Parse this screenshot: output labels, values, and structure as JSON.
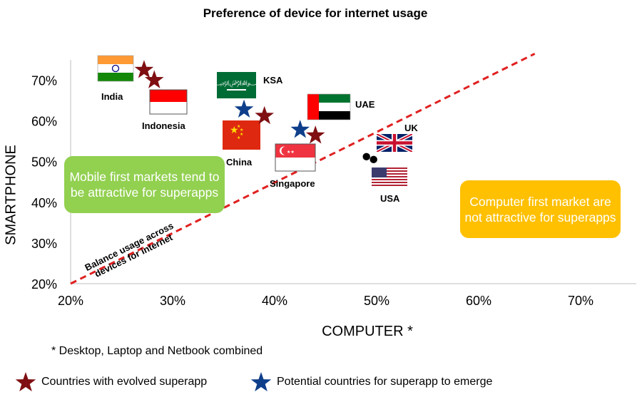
{
  "chart_data": {
    "type": "scatter",
    "title": "Preference of device for internet usage",
    "xlabel": "COMPUTER *",
    "ylabel": "SMARTPHONE",
    "xlim": [
      20,
      75
    ],
    "ylim": [
      20,
      75
    ],
    "x_ticks": [
      "20%",
      "30%",
      "40%",
      "50%",
      "60%",
      "70%"
    ],
    "y_ticks": [
      "20%",
      "30%",
      "40%",
      "50%",
      "60%",
      "70%"
    ],
    "x_tick_values": [
      20,
      30,
      40,
      50,
      60,
      70
    ],
    "y_tick_values": [
      20,
      30,
      40,
      50,
      60,
      70
    ],
    "grid": false,
    "series": [
      {
        "name": "Countries with evolved superapp",
        "marker": "star",
        "color": "#7f0f12",
        "points": [
          {
            "x": 27.2,
            "y": 72.5
          },
          {
            "x": 28.2,
            "y": 70.0
          },
          {
            "x": 39.0,
            "y": 61.2
          },
          {
            "x": 44.0,
            "y": 56.4
          }
        ]
      },
      {
        "name": "Potential countries for superapp to emerge",
        "marker": "star",
        "color": "#0f3f8a",
        "points": [
          {
            "x": 37.0,
            "y": 62.8
          },
          {
            "x": 42.5,
            "y": 57.8
          }
        ]
      },
      {
        "name": "",
        "marker": "circle",
        "color": "#000000",
        "points": [
          {
            "x": 49.0,
            "y": 51.2
          },
          {
            "x": 49.7,
            "y": 50.5
          }
        ]
      }
    ],
    "countries": [
      {
        "label": "India",
        "flag": "india-flag"
      },
      {
        "label": "Indonesia",
        "flag": "indonesia-flag"
      },
      {
        "label": "KSA",
        "flag": "ksa-flag"
      },
      {
        "label": "China",
        "flag": "china-flag"
      },
      {
        "label": "UAE",
        "flag": "uae-flag"
      },
      {
        "label": "Singapore",
        "flag": "singapore-flag"
      },
      {
        "label": "UK",
        "flag": "uk-flag"
      },
      {
        "label": "USA",
        "flag": "usa-flag"
      }
    ],
    "balance_line": {
      "label": "Balance usage across devices for internet",
      "color": "#e02020",
      "from": {
        "x": 20,
        "y": 20
      },
      "to": {
        "x": 65.5,
        "y": 76.5
      }
    },
    "annotations": {
      "mobile": "Mobile first markets tend to be attractive for superapps",
      "computer": "Computer first market are not attractive for superapps"
    },
    "footnote": "* Desktop, Laptop and Netbook combined",
    "legend": [
      {
        "label": "Countries with evolved superapp",
        "color": "#7f0f12"
      },
      {
        "label": "Potential countries for superapp to emerge",
        "color": "#0f3f8a"
      }
    ],
    "legend_position": "bottom",
    "colors": {
      "mobile_box": "#92d050",
      "computer_box": "#ffc000"
    }
  }
}
